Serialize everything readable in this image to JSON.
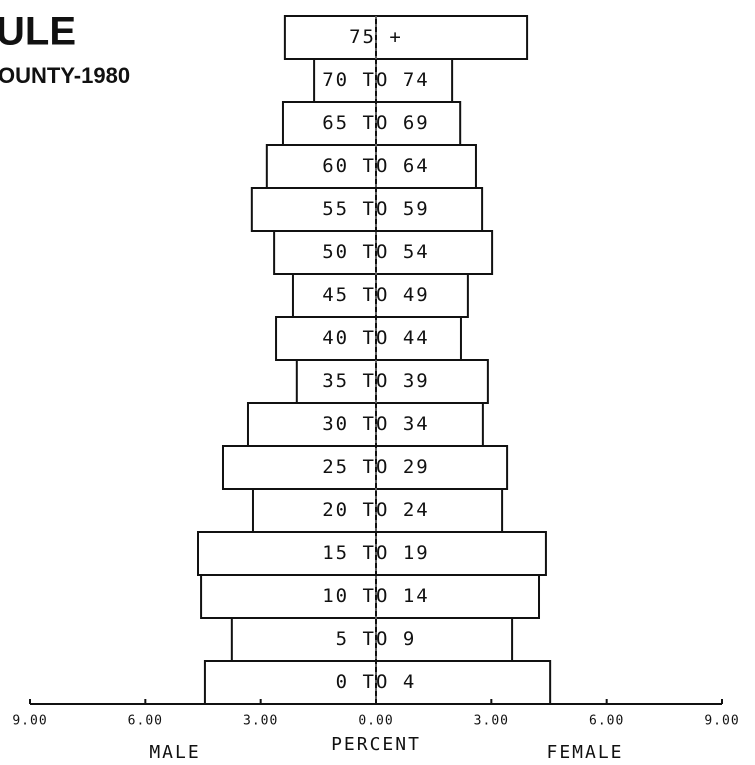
{
  "chart_data": {
    "type": "pyramid",
    "title": "ULE",
    "subtitle": "OUNTY-1980",
    "x_label": "PERCENT",
    "categories": [
      "0 TO 4",
      "5 TO 9",
      "10 TO 14",
      "15 TO 19",
      "20 TO 24",
      "25 TO 29",
      "30 TO 34",
      "35 TO 39",
      "40 TO 44",
      "45 TO 49",
      "50 TO 54",
      "55 TO 59",
      "60 TO 64",
      "65 TO 69",
      "70 TO 74",
      "75 +"
    ],
    "series": [
      {
        "name": "MALE",
        "color": "#ffffff",
        "values": [
          4.45,
          3.75,
          4.55,
          4.63,
          3.2,
          3.98,
          3.33,
          2.06,
          2.6,
          2.16,
          2.65,
          3.23,
          2.84,
          2.42,
          1.61,
          2.37
        ]
      },
      {
        "name": "FEMALE",
        "color": "#ffffff",
        "values": [
          4.53,
          3.54,
          4.24,
          4.42,
          3.28,
          3.41,
          2.78,
          2.91,
          2.21,
          2.39,
          3.02,
          2.76,
          2.6,
          2.19,
          1.98,
          3.93
        ]
      }
    ],
    "xlim": [
      -9,
      9
    ],
    "xticks": [
      {
        "value": -9,
        "label": "9.00"
      },
      {
        "value": -6,
        "label": "6.00"
      },
      {
        "value": -3,
        "label": "3.00"
      },
      {
        "value": 0,
        "label": "0.00"
      },
      {
        "value": 3,
        "label": "3.00"
      },
      {
        "value": 6,
        "label": "6.00"
      },
      {
        "value": 9,
        "label": "9.00"
      }
    ]
  }
}
